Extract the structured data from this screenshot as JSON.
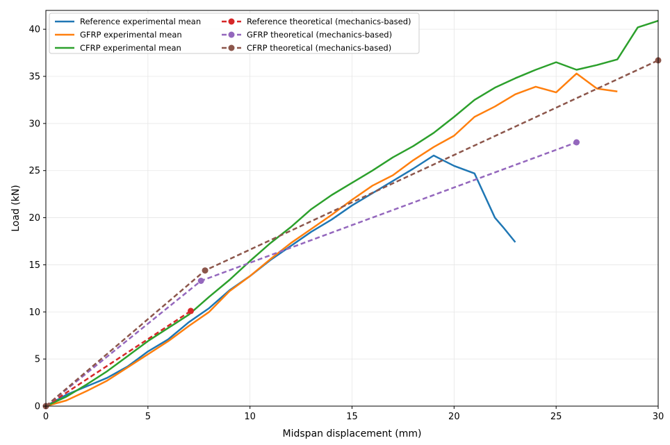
{
  "chart_data": {
    "type": "line",
    "title": "",
    "xlabel": "Midspan displacement (mm)",
    "ylabel": "Load (kN)",
    "xlim": [
      0,
      30
    ],
    "ylim": [
      0,
      42
    ],
    "xticks": [
      0,
      5,
      10,
      15,
      20,
      25,
      30
    ],
    "yticks": [
      0,
      5,
      10,
      15,
      20,
      25,
      30,
      35,
      40
    ],
    "grid": true,
    "legend_position": "top-left",
    "series": [
      {
        "name": "Reference experimental mean",
        "color": "#1f77b4",
        "style": "solid",
        "x": [
          0,
          1,
          2,
          3,
          4,
          5,
          6,
          7,
          8,
          9,
          10,
          11,
          12,
          13,
          14,
          15,
          16,
          17,
          18,
          19,
          20,
          21,
          22,
          22.4,
          23
        ],
        "y": [
          0,
          1.2,
          2.1,
          3.0,
          4.2,
          5.8,
          7.1,
          8.9,
          10.4,
          12.3,
          13.8,
          15.5,
          17.0,
          18.5,
          19.8,
          21.3,
          22.6,
          23.9,
          25.2,
          26.6,
          25.5,
          24.7,
          20.0,
          19.0,
          17.4
        ]
      },
      {
        "name": "GFRP experimental mean",
        "color": "#ff7f0e",
        "style": "solid",
        "x": [
          0,
          1,
          2,
          3,
          4,
          5,
          6,
          7,
          8,
          9,
          10,
          11,
          12,
          13,
          14,
          15,
          16,
          17,
          18,
          19,
          20,
          21,
          22,
          23,
          24,
          25,
          26,
          27,
          28
        ],
        "y": [
          0,
          0.6,
          1.6,
          2.7,
          4.1,
          5.5,
          6.9,
          8.5,
          10.0,
          12.2,
          13.8,
          15.6,
          17.3,
          18.8,
          20.3,
          21.9,
          23.4,
          24.5,
          26.1,
          27.5,
          28.7,
          30.7,
          31.8,
          33.1,
          33.9,
          33.3,
          35.3,
          33.7,
          33.4
        ]
      },
      {
        "name": "CFRP experimental mean",
        "color": "#2ca02c",
        "style": "solid",
        "x": [
          0,
          1,
          2,
          3,
          4,
          5,
          6,
          7,
          8,
          9,
          10,
          11,
          12,
          13,
          14,
          15,
          16,
          17,
          18,
          19,
          20,
          21,
          22,
          23,
          24,
          25,
          26,
          27,
          28,
          29,
          30
        ],
        "y": [
          0,
          1.0,
          2.3,
          3.7,
          5.3,
          6.9,
          8.3,
          9.7,
          11.6,
          13.4,
          15.4,
          17.3,
          19.0,
          20.9,
          22.4,
          23.7,
          25.0,
          26.4,
          27.6,
          29.0,
          30.7,
          32.5,
          33.8,
          34.8,
          35.7,
          36.5,
          35.7,
          36.2,
          36.8,
          40.2,
          40.9
        ]
      },
      {
        "name": "Reference theoretical (mechanics-based)",
        "color": "#d62728",
        "style": "dashed",
        "marker": true,
        "x": [
          0,
          7.1
        ],
        "y": [
          0,
          10.1
        ]
      },
      {
        "name": "GFRP theoretical (mechanics-based)",
        "color": "#9467bd",
        "style": "dashed",
        "marker": true,
        "x": [
          0,
          7.6,
          26
        ],
        "y": [
          0,
          13.3,
          28.0
        ]
      },
      {
        "name": "CFRP theoretical (mechanics-based)",
        "color": "#8c564b",
        "style": "dashed",
        "marker": true,
        "x": [
          0,
          7.8,
          30
        ],
        "y": [
          0,
          14.4,
          36.7
        ]
      }
    ]
  }
}
